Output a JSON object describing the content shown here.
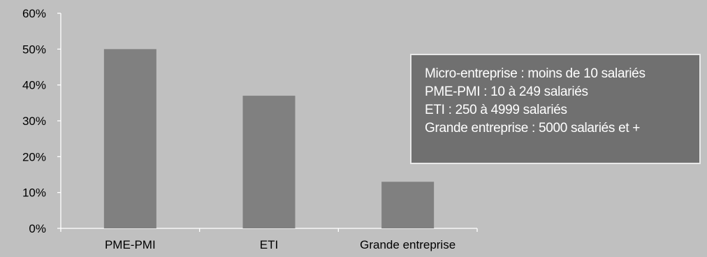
{
  "chart_data": {
    "type": "bar",
    "title": "",
    "xlabel": "",
    "ylabel": "",
    "categories": [
      "PME-PMI",
      "ETI",
      "Grande entreprise"
    ],
    "values": [
      0.5,
      0.37,
      0.13
    ],
    "ylim": [
      0,
      0.6
    ],
    "yticks": [
      "0%",
      "10%",
      "20%",
      "30%",
      "40%",
      "50%",
      "60%"
    ],
    "grid": false,
    "legend": "none",
    "colors": {
      "background": "#c0c0c0",
      "bar": "#808080",
      "axis": "#ffffff",
      "text": "#000000"
    }
  },
  "note_box": {
    "lines": [
      "Micro-entreprise : moins de 10 salariés",
      "PME-PMI : 10 à 249 salariés",
      "ETI : 250 à 4999 salariés",
      "Grande entreprise : 5000 salariés et +"
    ]
  }
}
